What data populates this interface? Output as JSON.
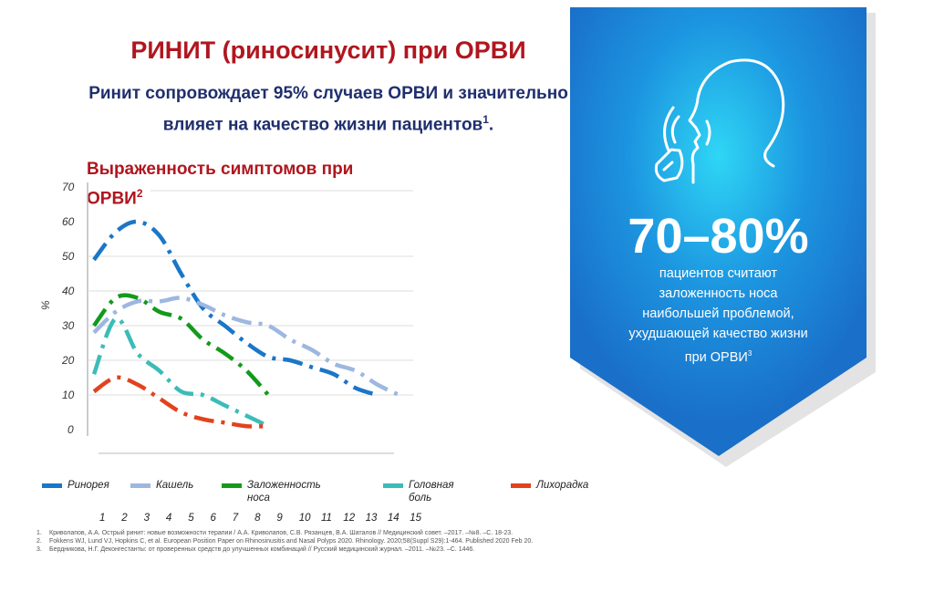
{
  "slide": {
    "title": "РИНИТ (риносинусит) при ОРВИ",
    "subtitle_line1": "Ринит сопровождает 95% случаев ОРВИ и значительно",
    "subtitle_line2": "влияет  на качество жизни пациентов",
    "subtitle_ref": "1",
    "chart_title": "Выраженность симптомов при ОРВИ",
    "chart_title_ref": "2"
  },
  "callout": {
    "icon": "person-sneezing-icon",
    "stat": "70–80%",
    "lines": [
      "пациентов считают",
      "заложенность носа",
      "наибольшей проблемой,",
      "ухудшающей  качество жизни",
      "при ОРВИ"
    ],
    "ref": "3",
    "color": "#1e88d8"
  },
  "chart_data": {
    "type": "line",
    "title": "Выраженность симптомов при ОРВИ",
    "ylabel": "%",
    "xlabel": "",
    "ylim": [
      0,
      70
    ],
    "y_ticks": [
      "0",
      "10",
      "20",
      "30",
      "40",
      "50",
      "60",
      "70"
    ],
    "x_ticks": [
      "1",
      "2",
      "3",
      "4",
      "5",
      "6",
      "7",
      "8",
      "9",
      "10",
      "11",
      "12",
      "13",
      "14",
      "15"
    ],
    "grid": true,
    "legend_position": "bottom",
    "line_style": "dashed",
    "series": [
      {
        "name": "Ринорея",
        "color": "#1a76c8",
        "x": [
          1,
          2,
          3,
          4,
          5,
          6,
          7,
          8,
          9,
          10,
          11,
          12,
          13,
          14
        ],
        "values": [
          49,
          57,
          60,
          56,
          45,
          35,
          30,
          25,
          21,
          20,
          18,
          16,
          12,
          10
        ]
      },
      {
        "name": "Кашель",
        "color": "#9db7e0",
        "x": [
          1,
          2,
          3,
          4,
          5,
          6,
          7,
          8,
          9,
          10,
          11,
          12,
          13,
          14,
          15
        ],
        "values": [
          28,
          34,
          37,
          37,
          38,
          36,
          33,
          31,
          30,
          26,
          23,
          19,
          17,
          13,
          10
        ]
      },
      {
        "name": "Заложенность носа",
        "color": "#139a1c",
        "x": [
          1,
          2,
          3,
          4,
          5,
          6,
          7,
          8,
          9
        ],
        "values": [
          30,
          38,
          38,
          34,
          32,
          26,
          22,
          17,
          10
        ]
      },
      {
        "name": "Головная боль",
        "color": "#3bbcb8",
        "x": [
          1,
          2,
          3,
          4,
          5,
          6,
          7,
          8,
          9
        ],
        "values": [
          16,
          32,
          22,
          17,
          11,
          10,
          7,
          4,
          1
        ]
      },
      {
        "name": "Лихорадка",
        "color": "#e2421e",
        "x": [
          1,
          2,
          3,
          4,
          5,
          6,
          7,
          8,
          9
        ],
        "values": [
          11,
          15,
          13,
          9,
          5,
          3,
          2,
          1,
          1
        ]
      }
    ]
  },
  "references": [
    {
      "n": "1.",
      "text": "Криволапов, А.А. Острый ринит: новые возможности терапии / А.А. Криволапов, С.В. Рязанцев, В.А. Шаталов // Медицинский совет. –2017. –№8. –С. 18-23."
    },
    {
      "n": "2.",
      "text": "Fokkens WJ, Lund VJ, Hopkins C, et al. European Position Paper on Rhinosinusitis and Nasal Polyps 2020. Rhinology. 2020;58(Suppl S29):1-464. Published 2020 Feb 20."
    },
    {
      "n": "3.",
      "text": "Бердникова, Н.Г. Деконгестанты: от проверенных средств до улучшенных комбинаций // Русский медицинский журнал. –2011. –№23. –С. 1446."
    }
  ]
}
